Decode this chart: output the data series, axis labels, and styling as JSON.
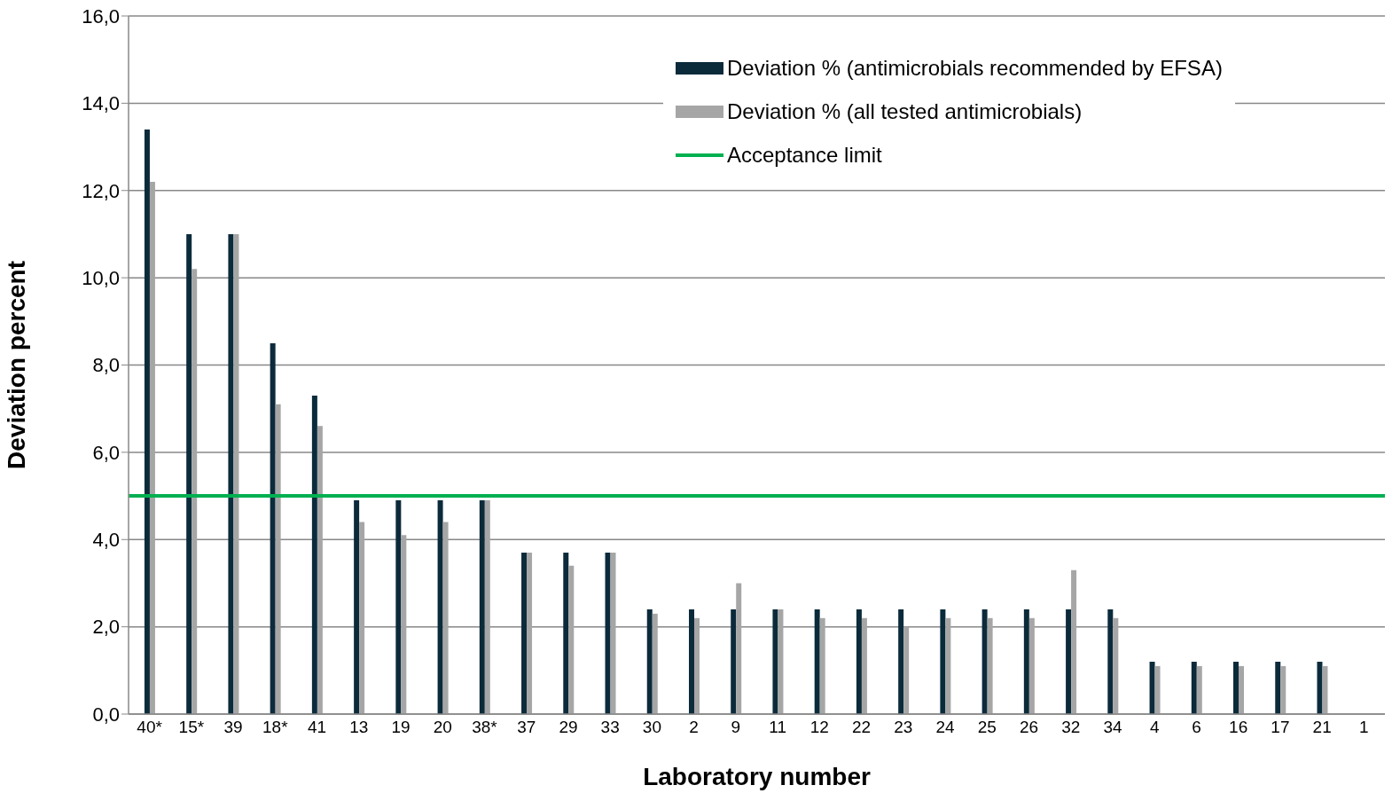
{
  "chart_data": {
    "type": "bar",
    "xlabel": "Laboratory number",
    "ylabel": "Deviation percent",
    "categories": [
      "40*",
      "15*",
      "39",
      "18*",
      "41",
      "13",
      "19",
      "20",
      "38*",
      "37",
      "29",
      "33",
      "30",
      "2",
      "9",
      "11",
      "12",
      "22",
      "23",
      "24",
      "25",
      "26",
      "32",
      "34",
      "4",
      "6",
      "16",
      "17",
      "21",
      "1"
    ],
    "series": [
      {
        "name": "Deviation % (antimicrobials recommended by EFSA)",
        "color": "#0b2b3b",
        "values": [
          13.4,
          11.0,
          11.0,
          8.5,
          7.3,
          4.9,
          4.9,
          4.9,
          4.9,
          3.7,
          3.7,
          3.7,
          2.4,
          2.4,
          2.4,
          2.4,
          2.4,
          2.4,
          2.4,
          2.4,
          2.4,
          2.4,
          2.4,
          2.4,
          1.2,
          1.2,
          1.2,
          1.2,
          1.2,
          0
        ]
      },
      {
        "name": "Deviation % (all tested antimicrobials)",
        "color": "#a6a6a6",
        "values": [
          12.2,
          10.2,
          11.0,
          7.1,
          6.6,
          4.4,
          4.1,
          4.4,
          4.9,
          3.7,
          3.4,
          3.7,
          2.3,
          2.2,
          3.0,
          2.4,
          2.2,
          2.2,
          2.0,
          2.2,
          2.2,
          2.2,
          3.3,
          2.2,
          1.1,
          1.1,
          1.1,
          1.1,
          1.1,
          0
        ]
      }
    ],
    "ylim": [
      0,
      16
    ],
    "yticks": [
      {
        "value": 0,
        "label": "0,0"
      },
      {
        "value": 2,
        "label": "2,0"
      },
      {
        "value": 4,
        "label": "4,0"
      },
      {
        "value": 6,
        "label": "6,0"
      },
      {
        "value": 8,
        "label": "8,0"
      },
      {
        "value": 10,
        "label": "10,0"
      },
      {
        "value": 12,
        "label": "12,0"
      },
      {
        "value": 14,
        "label": "14,0"
      },
      {
        "value": 16,
        "label": "16,0"
      }
    ],
    "ref_lines": [
      {
        "axis": "y",
        "value": 5,
        "label": "Acceptance limit",
        "color": "#00b050"
      }
    ],
    "grid": "y",
    "legend": "top right"
  }
}
